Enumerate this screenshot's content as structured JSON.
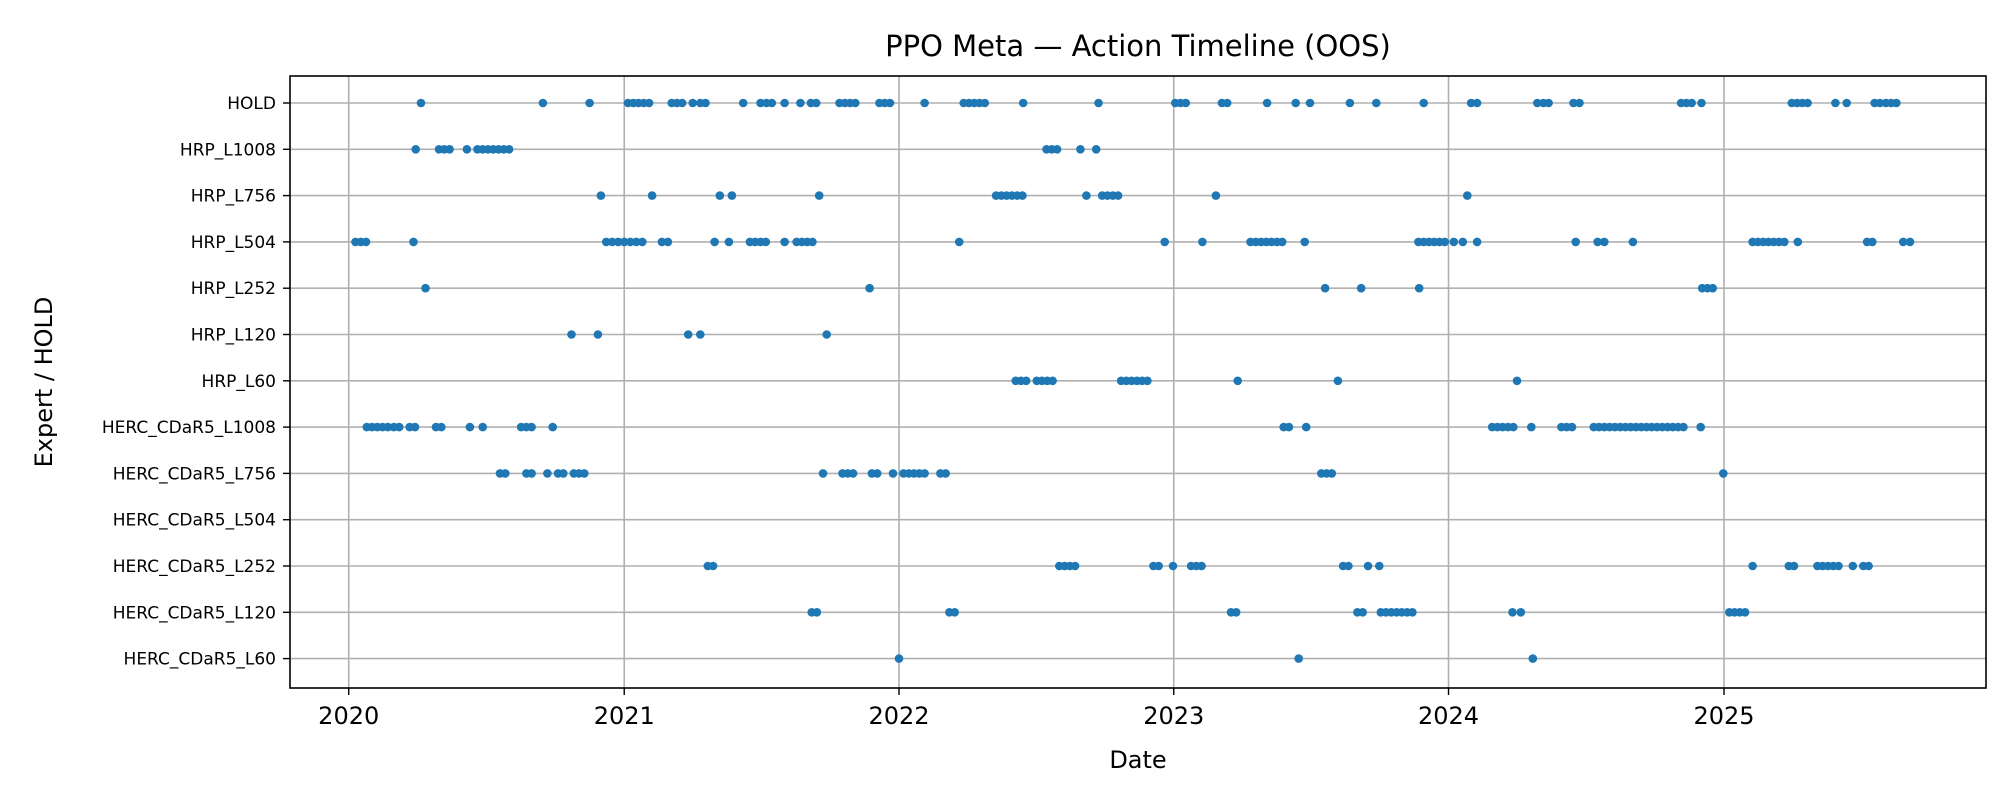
{
  "chart_data": {
    "type": "scatter",
    "title": "PPO Meta — Action Timeline (OOS)",
    "xlabel": "Date",
    "ylabel": "Expert / HOLD",
    "x_ticks": [
      "2020",
      "2021",
      "2022",
      "2023",
      "2024",
      "2025"
    ],
    "xlim": [
      "2019-10-15",
      "2025-12-15"
    ],
    "grid": true,
    "categories": [
      "HOLD",
      "HRP_L1008",
      "HRP_L756",
      "HRP_L504",
      "HRP_L252",
      "HRP_L120",
      "HRP_L60",
      "HERC_CDaR5_L1008",
      "HERC_CDaR5_L756",
      "HERC_CDaR5_L504",
      "HERC_CDaR5_L252",
      "HERC_CDaR5_L120",
      "HERC_CDaR5_L60"
    ],
    "marker_color": "#1f77b4",
    "series": [
      {
        "category": "HOLD",
        "dates": [
          "2020-04-06",
          "2020-09-15",
          "2020-11-16",
          "2021-01-06",
          "2021-01-13",
          "2021-01-20",
          "2021-01-27",
          "2021-02-03",
          "2021-03-05",
          "2021-03-12",
          "2021-03-19",
          "2021-04-02",
          "2021-04-12",
          "2021-04-19",
          "2021-06-08",
          "2021-07-01",
          "2021-07-09",
          "2021-07-16",
          "2021-08-02",
          "2021-08-23",
          "2021-09-06",
          "2021-09-13",
          "2021-10-14",
          "2021-10-21",
          "2021-10-28",
          "2021-11-04",
          "2021-12-06",
          "2021-12-13",
          "2021-12-20",
          "2022-02-04",
          "2022-03-28",
          "2022-04-04",
          "2022-04-11",
          "2022-04-18",
          "2022-04-25",
          "2022-06-15",
          "2022-09-23",
          "2023-01-03",
          "2023-01-10",
          "2023-01-17",
          "2023-03-06",
          "2023-03-13",
          "2023-05-05",
          "2023-06-12",
          "2023-07-01",
          "2023-08-23",
          "2023-09-27",
          "2023-11-29",
          "2024-01-31",
          "2024-02-08",
          "2024-04-28",
          "2024-05-06",
          "2024-05-13",
          "2024-06-15",
          "2024-06-23",
          "2024-11-05",
          "2024-11-12",
          "2024-11-19",
          "2024-12-02",
          "2025-04-01",
          "2025-04-08",
          "2025-04-15",
          "2025-04-22",
          "2025-05-29",
          "2025-06-13",
          "2025-07-20",
          "2025-07-27",
          "2025-08-04",
          "2025-08-11",
          "2025-08-18"
        ]
      },
      {
        "category": "HRP_L1008",
        "dates": [
          "2020-03-30",
          "2020-04-30",
          "2020-05-07",
          "2020-05-14",
          "2020-06-06",
          "2020-06-20",
          "2020-06-27",
          "2020-07-04",
          "2020-07-11",
          "2020-07-18",
          "2020-07-25",
          "2020-08-01",
          "2022-07-16",
          "2022-07-23",
          "2022-07-30",
          "2022-08-30",
          "2022-09-20"
        ]
      },
      {
        "category": "HRP_L756",
        "dates": [
          "2020-12-01",
          "2021-02-07",
          "2021-05-08",
          "2021-05-24",
          "2021-09-17",
          "2022-05-10",
          "2022-05-17",
          "2022-05-24",
          "2022-05-31",
          "2022-06-07",
          "2022-06-14",
          "2022-09-07",
          "2022-09-28",
          "2022-10-05",
          "2022-10-12",
          "2022-10-19",
          "2023-02-26",
          "2024-01-26"
        ]
      },
      {
        "category": "HRP_L504",
        "dates": [
          "2020-01-10",
          "2020-01-17",
          "2020-01-24",
          "2020-03-27",
          "2020-12-08",
          "2020-12-16",
          "2020-12-24",
          "2021-01-01",
          "2021-01-09",
          "2021-01-17",
          "2021-01-25",
          "2021-02-20",
          "2021-02-28",
          "2021-05-01",
          "2021-05-20",
          "2021-06-17",
          "2021-06-24",
          "2021-07-01",
          "2021-07-08",
          "2021-08-02",
          "2021-08-18",
          "2021-08-25",
          "2021-09-01",
          "2021-09-08",
          "2022-03-22",
          "2022-12-20",
          "2023-02-08",
          "2023-04-13",
          "2023-04-20",
          "2023-04-27",
          "2023-05-04",
          "2023-05-11",
          "2023-05-18",
          "2023-05-25",
          "2023-06-24",
          "2023-11-22",
          "2023-11-29",
          "2023-12-06",
          "2023-12-13",
          "2023-12-20",
          "2023-12-27",
          "2024-01-08",
          "2024-01-20",
          "2024-02-08",
          "2024-06-18",
          "2024-07-17",
          "2024-07-26",
          "2024-09-02",
          "2025-02-08",
          "2025-02-15",
          "2025-02-22",
          "2025-03-01",
          "2025-03-08",
          "2025-03-15",
          "2025-03-22",
          "2025-04-09",
          "2025-07-10",
          "2025-07-17",
          "2025-08-27",
          "2025-09-05"
        ]
      },
      {
        "category": "HRP_L252",
        "dates": [
          "2020-04-12",
          "2021-11-23",
          "2023-07-21",
          "2023-09-07",
          "2023-11-23",
          "2024-12-03",
          "2024-12-10",
          "2024-12-17"
        ]
      },
      {
        "category": "HRP_L120",
        "dates": [
          "2020-10-23",
          "2020-11-27",
          "2021-03-27",
          "2021-04-12",
          "2021-09-27"
        ]
      },
      {
        "category": "HRP_L60",
        "dates": [
          "2022-06-05",
          "2022-06-12",
          "2022-06-19",
          "2022-07-03",
          "2022-07-10",
          "2022-07-17",
          "2022-07-24",
          "2022-10-23",
          "2022-10-30",
          "2022-11-06",
          "2022-11-13",
          "2022-11-20",
          "2022-11-27",
          "2023-03-27",
          "2023-08-07",
          "2024-04-01"
        ]
      },
      {
        "category": "HERC_CDaR5_L1008",
        "dates": [
          "2020-01-25",
          "2020-02-01",
          "2020-02-08",
          "2020-02-15",
          "2020-02-22",
          "2020-03-01",
          "2020-03-08",
          "2020-03-22",
          "2020-03-29",
          "2020-04-26",
          "2020-05-03",
          "2020-06-10",
          "2020-06-27",
          "2020-08-17",
          "2020-08-24",
          "2020-08-31",
          "2020-09-28",
          "2023-05-27",
          "2023-06-03",
          "2023-06-26",
          "2024-02-28",
          "2024-03-06",
          "2024-03-13",
          "2024-03-20",
          "2024-03-27",
          "2024-04-20",
          "2024-05-30",
          "2024-06-06",
          "2024-06-13",
          "2024-07-12",
          "2024-07-19",
          "2024-07-26",
          "2024-08-02",
          "2024-08-09",
          "2024-08-16",
          "2024-08-23",
          "2024-08-30",
          "2024-09-06",
          "2024-09-13",
          "2024-09-20",
          "2024-09-27",
          "2024-10-04",
          "2024-10-11",
          "2024-10-18",
          "2024-10-25",
          "2024-11-01",
          "2024-11-08",
          "2024-12-01"
        ]
      },
      {
        "category": "HERC_CDaR5_L756",
        "dates": [
          "2020-07-20",
          "2020-07-27",
          "2020-08-24",
          "2020-08-31",
          "2020-09-21",
          "2020-10-05",
          "2020-10-12",
          "2020-10-26",
          "2020-11-02",
          "2020-11-09",
          "2021-09-22",
          "2021-10-18",
          "2021-10-25",
          "2021-11-01",
          "2021-11-26",
          "2021-12-03",
          "2021-12-24",
          "2022-01-07",
          "2022-01-14",
          "2022-01-21",
          "2022-01-28",
          "2022-02-04",
          "2022-02-25",
          "2022-03-04",
          "2023-07-16",
          "2023-07-23",
          "2023-07-30",
          "2024-12-31"
        ]
      },
      {
        "category": "HERC_CDaR5_L504",
        "dates": []
      },
      {
        "category": "HERC_CDaR5_L252",
        "dates": [
          "2021-04-22",
          "2021-04-29",
          "2022-08-02",
          "2022-08-09",
          "2022-08-16",
          "2022-08-23",
          "2022-12-05",
          "2022-12-12",
          "2022-12-31",
          "2023-01-24",
          "2023-01-31",
          "2023-02-07",
          "2023-08-14",
          "2023-08-21",
          "2023-09-16",
          "2023-10-01",
          "2025-02-08",
          "2025-03-28",
          "2025-04-04",
          "2025-05-05",
          "2025-05-12",
          "2025-05-19",
          "2025-05-26",
          "2025-06-02",
          "2025-06-21",
          "2025-07-05",
          "2025-07-12"
        ]
      },
      {
        "category": "HERC_CDaR5_L120",
        "dates": [
          "2021-09-07",
          "2021-09-14",
          "2022-03-09",
          "2022-03-16",
          "2023-03-18",
          "2023-03-25",
          "2023-09-02",
          "2023-09-09",
          "2023-10-03",
          "2023-10-10",
          "2023-10-17",
          "2023-10-24",
          "2023-10-31",
          "2023-11-07",
          "2023-11-14",
          "2024-03-26",
          "2024-04-06",
          "2025-01-08",
          "2025-01-15",
          "2025-01-22",
          "2025-01-29"
        ]
      },
      {
        "category": "HERC_CDaR5_L60",
        "dates": [
          "2022-01-01",
          "2023-06-16",
          "2024-04-22"
        ]
      }
    ]
  }
}
